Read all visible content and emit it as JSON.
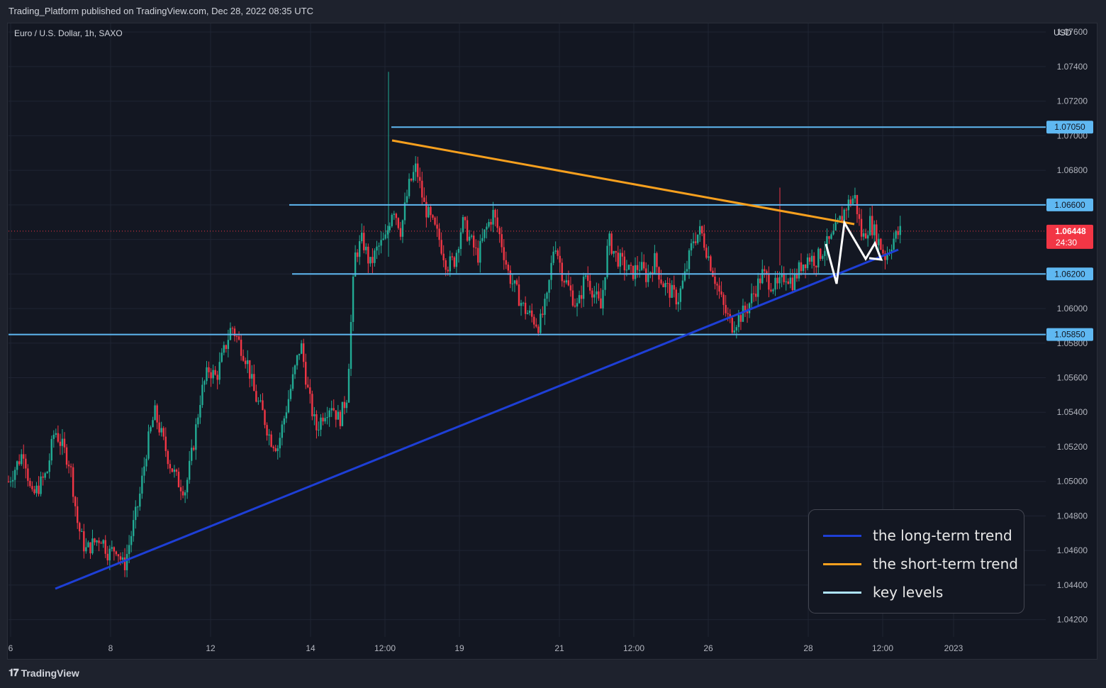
{
  "header": {
    "publisher": "Trading_Platform published on TradingView.com, Dec 28, 2022 08:35 UTC"
  },
  "footer": {
    "brand": "TradingView"
  },
  "chart_data": {
    "type": "candlestick",
    "symbol": "Euro / U.S. Dollar, 1h, SAXO",
    "currency": "USD",
    "ylim": [
      1.041,
      1.0765
    ],
    "y_ticks": [
      "1.04200",
      "1.04400",
      "1.04600",
      "1.04800",
      "1.05000",
      "1.05200",
      "1.05400",
      "1.05600",
      "1.05800",
      "1.06000",
      "1.06200",
      "1.06400",
      "1.06600",
      "1.06800",
      "1.07000",
      "1.07200",
      "1.07400",
      "1.07600"
    ],
    "x_ticks": [
      "6",
      "8",
      "12",
      "14",
      "12:00",
      "19",
      "21",
      "12:00",
      "26",
      "28",
      "12:00",
      "2023"
    ],
    "key_levels": [
      {
        "value": 1.0705,
        "label": "1.07050"
      },
      {
        "value": 1.066,
        "label": "1.06600"
      },
      {
        "value": 1.062,
        "label": "1.06200"
      },
      {
        "value": 1.0585,
        "label": "1.05850"
      }
    ],
    "last_price": {
      "value": 1.06448,
      "label": "1.06448",
      "countdown": "24:30"
    },
    "close_path": [
      [
        0,
        1.05
      ],
      [
        2,
        1.0518
      ],
      [
        3,
        1.049
      ],
      [
        5,
        1.0505
      ],
      [
        6,
        1.053
      ],
      [
        8,
        1.051
      ],
      [
        9,
        1.0475
      ],
      [
        10,
        1.046
      ],
      [
        12,
        1.0468
      ],
      [
        13,
        1.0458
      ],
      [
        14,
        1.0462
      ],
      [
        15,
        1.045
      ],
      [
        16,
        1.047
      ],
      [
        17,
        1.049
      ],
      [
        18,
        1.052
      ],
      [
        19,
        1.054
      ],
      [
        20,
        1.0525
      ],
      [
        21,
        1.051
      ],
      [
        22,
        1.05
      ],
      [
        23,
        1.0495
      ],
      [
        24,
        1.052
      ],
      [
        25,
        1.055
      ],
      [
        26,
        1.0565
      ],
      [
        27,
        1.056
      ],
      [
        28,
        1.0575
      ],
      [
        29,
        1.059
      ],
      [
        30,
        1.058
      ],
      [
        31,
        1.057
      ],
      [
        32,
        1.055
      ],
      [
        33,
        1.054
      ],
      [
        34,
        1.0525
      ],
      [
        35,
        1.052
      ],
      [
        36,
        1.054
      ],
      [
        37,
        1.056
      ],
      [
        38,
        1.058
      ],
      [
        39,
        1.055
      ],
      [
        40,
        1.053
      ],
      [
        41,
        1.054
      ],
      [
        42,
        1.0545
      ],
      [
        43,
        1.0535
      ],
      [
        44,
        1.055
      ],
      [
        45,
        1.063
      ],
      [
        46,
        1.064
      ],
      [
        47,
        1.0625
      ],
      [
        48,
        1.0635
      ],
      [
        49,
        1.064
      ],
      [
        50,
        1.066
      ],
      [
        51,
        1.0645
      ],
      [
        52,
        1.067
      ],
      [
        53,
        1.0682
      ],
      [
        54,
        1.066
      ],
      [
        55,
        1.065
      ],
      [
        56,
        1.064
      ],
      [
        57,
        1.0625
      ],
      [
        58,
        1.0628
      ],
      [
        59,
        1.065
      ],
      [
        60,
        1.064
      ],
      [
        61,
        1.063
      ],
      [
        62,
        1.0645
      ],
      [
        63,
        1.0655
      ],
      [
        64,
        1.064
      ],
      [
        65,
        1.062
      ],
      [
        66,
        1.061
      ],
      [
        67,
        1.06
      ],
      [
        68,
        1.0595
      ],
      [
        69,
        1.059
      ],
      [
        70,
        1.0605
      ],
      [
        71,
        1.064
      ],
      [
        72,
        1.062
      ],
      [
        73,
        1.061
      ],
      [
        74,
        1.06
      ],
      [
        75,
        1.062
      ],
      [
        76,
        1.061
      ],
      [
        77,
        1.06
      ],
      [
        78,
        1.064
      ],
      [
        79,
        1.063
      ],
      [
        80,
        1.0625
      ],
      [
        81,
        1.062
      ],
      [
        82,
        1.0625
      ],
      [
        83,
        1.0618
      ],
      [
        84,
        1.0628
      ],
      [
        85,
        1.0615
      ],
      [
        86,
        1.061
      ],
      [
        87,
        1.0605
      ],
      [
        88,
        1.062
      ],
      [
        89,
        1.064
      ],
      [
        90,
        1.0645
      ],
      [
        91,
        1.063
      ],
      [
        92,
        1.0615
      ],
      [
        93,
        1.06
      ],
      [
        94,
        1.059
      ],
      [
        95,
        1.0595
      ],
      [
        96,
        1.06
      ],
      [
        97,
        1.061
      ],
      [
        98,
        1.062
      ],
      [
        99,
        1.0615
      ],
      [
        100,
        1.0612
      ],
      [
        101,
        1.062
      ],
      [
        102,
        1.0615
      ],
      [
        103,
        1.0625
      ],
      [
        104,
        1.063
      ],
      [
        105,
        1.0628
      ],
      [
        106,
        1.0635
      ],
      [
        107,
        1.064
      ],
      [
        108,
        1.065
      ],
      [
        109,
        1.066
      ],
      [
        110,
        1.0665
      ],
      [
        111,
        1.064
      ],
      [
        112,
        1.065
      ],
      [
        113,
        1.064
      ],
      [
        114,
        1.063
      ],
      [
        115,
        1.064
      ],
      [
        116,
        1.0645
      ]
    ],
    "trendlines": [
      {
        "name": "long-term",
        "from": [
          1.5,
          1.0442
        ],
        "to": [
          103,
          1.064
        ],
        "color": "#1e3fd6"
      },
      {
        "name": "short-term",
        "from": [
          54,
          1.07035
        ],
        "to": [
          110,
          1.06555
        ],
        "color": "#f7a01e"
      }
    ],
    "projection": [
      [
        104.5,
        1.0643
      ],
      [
        106,
        1.062
      ],
      [
        107.5,
        1.0657
      ],
      [
        109.2,
        1.0634
      ],
      [
        110.5,
        1.0642
      ],
      [
        111.2,
        1.0636
      ]
    ],
    "legend": [
      {
        "label": "the long-term trend",
        "color": "#1e3fd6"
      },
      {
        "label": "the short-term trend",
        "color": "#f7a01e"
      },
      {
        "label": "key levels",
        "color": "#aee4ff"
      }
    ]
  }
}
